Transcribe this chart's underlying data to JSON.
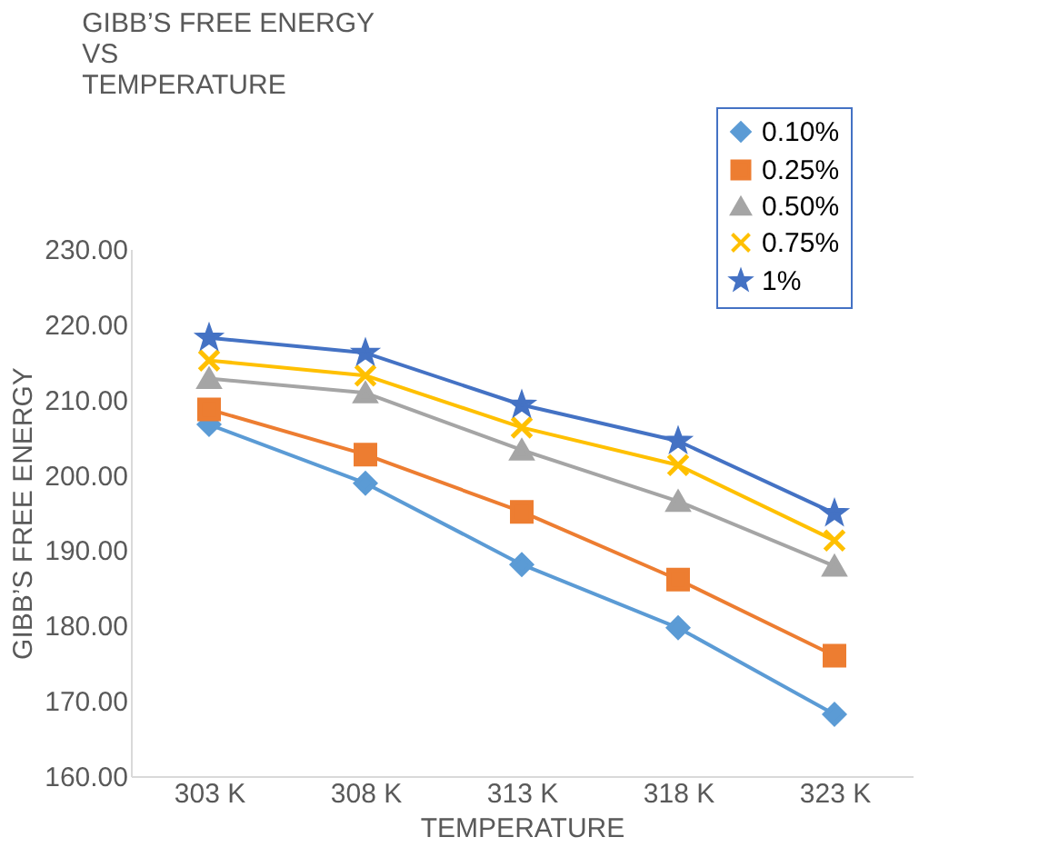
{
  "chart_data": {
    "type": "line",
    "title": "GIBB’S FREE ENERGY\nVS\nTEMPERATURE",
    "xlabel": "TEMPERATURE",
    "ylabel": "GIBB’S FREE ENERGY",
    "categories": [
      "303 K",
      "308 K",
      "313 K",
      "318 K",
      "323 K"
    ],
    "ylim": [
      160,
      230
    ],
    "yticks": [
      {
        "value": 160,
        "label": "160.00"
      },
      {
        "value": 170,
        "label": "170.00"
      },
      {
        "value": 180,
        "label": "180.00"
      },
      {
        "value": 190,
        "label": "190.00"
      },
      {
        "value": 200,
        "label": "200.00"
      },
      {
        "value": 210,
        "label": "210.00"
      },
      {
        "value": 220,
        "label": "220.00"
      },
      {
        "value": 230,
        "label": "230.00"
      }
    ],
    "series": [
      {
        "name": "0.10%",
        "color": "#5b9bd5",
        "marker": "diamond",
        "values": [
          206.7,
          198.9,
          188.1,
          179.7,
          168.2
        ]
      },
      {
        "name": "0.25%",
        "color": "#ed7d31",
        "marker": "square",
        "values": [
          208.7,
          202.7,
          195.1,
          186.1,
          176.0
        ]
      },
      {
        "name": "0.50%",
        "color": "#a5a5a5",
        "marker": "triangle",
        "values": [
          212.8,
          210.9,
          203.3,
          196.5,
          187.9
        ]
      },
      {
        "name": "0.75%",
        "color": "#ffc000",
        "marker": "cross",
        "values": [
          215.2,
          213.2,
          206.3,
          201.3,
          191.3
        ]
      },
      {
        "name": "1%",
        "color": "#4472c4",
        "marker": "star",
        "values": [
          218.2,
          216.2,
          209.3,
          204.5,
          194.9
        ]
      }
    ],
    "grid": false,
    "legend": "top right",
    "line_style": "solid"
  }
}
